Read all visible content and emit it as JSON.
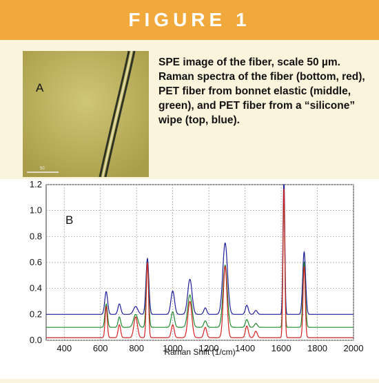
{
  "figure_title": "FIGURE 1",
  "micrograph": {
    "panel_label": "A",
    "scale_text": "50"
  },
  "caption": "SPE image of the fiber, scale 50 µm. Raman spectra of the fiber (bottom, red), PET fiber from bonnet elastic (middle, green), and PET fiber from a “silicone” wipe (top, blue).",
  "colors": {
    "banner": "#f2a93b",
    "background": "#fbf4dc",
    "blue": "#1d1d9c",
    "green": "#1f8a2e",
    "red": "#d42020"
  },
  "chart_data": {
    "type": "line",
    "panel_label": "B",
    "xlabel": "Raman Shift (1/cm)",
    "ylabel": "",
    "xlim": [
      300,
      2000
    ],
    "ylim": [
      0,
      1.2
    ],
    "xticks": [
      400,
      600,
      800,
      1000,
      1200,
      1400,
      1600,
      1800,
      2000
    ],
    "yticks": [
      0.0,
      0.2,
      0.4,
      0.6,
      0.8,
      1.0,
      1.2
    ],
    "ytick_labels": [
      "0.0",
      "0.2",
      "0.4",
      "0.6",
      "0.8",
      "1.0",
      "1.2"
    ],
    "grid": true,
    "series": [
      {
        "color": "blue",
        "position": "top",
        "baseline": 0.2,
        "peaks": [
          [
            632,
            0.175,
            8
          ],
          [
            705,
            0.08,
            8
          ],
          [
            795,
            0.06,
            12
          ],
          [
            860,
            0.43,
            8
          ],
          [
            1000,
            0.18,
            10
          ],
          [
            1095,
            0.27,
            12
          ],
          [
            1180,
            0.05,
            8
          ],
          [
            1290,
            0.55,
            13
          ],
          [
            1410,
            0.07,
            8
          ],
          [
            1460,
            0.03,
            8
          ],
          [
            1615,
            1.05,
            5
          ],
          [
            1727,
            0.48,
            8
          ]
        ]
      },
      {
        "color": "green",
        "position": "middle",
        "baseline": 0.1,
        "peaks": [
          [
            632,
            0.18,
            7
          ],
          [
            705,
            0.08,
            7
          ],
          [
            795,
            0.1,
            12
          ],
          [
            860,
            0.5,
            7
          ],
          [
            1000,
            0.12,
            9
          ],
          [
            1095,
            0.25,
            12
          ],
          [
            1180,
            0.05,
            8
          ],
          [
            1290,
            0.48,
            12
          ],
          [
            1410,
            0.06,
            8
          ],
          [
            1460,
            0.03,
            8
          ],
          [
            1615,
            1.0,
            5
          ],
          [
            1727,
            0.5,
            7
          ]
        ]
      },
      {
        "color": "red",
        "position": "bottom",
        "baseline": 0.02,
        "peaks": [
          [
            632,
            0.24,
            6
          ],
          [
            705,
            0.1,
            7
          ],
          [
            795,
            0.16,
            10
          ],
          [
            860,
            0.58,
            6
          ],
          [
            1000,
            0.1,
            8
          ],
          [
            1095,
            0.28,
            11
          ],
          [
            1180,
            0.08,
            8
          ],
          [
            1290,
            0.55,
            10
          ],
          [
            1410,
            0.09,
            8
          ],
          [
            1460,
            0.05,
            8
          ],
          [
            1615,
            1.15,
            5
          ],
          [
            1727,
            0.55,
            6
          ]
        ]
      }
    ]
  }
}
